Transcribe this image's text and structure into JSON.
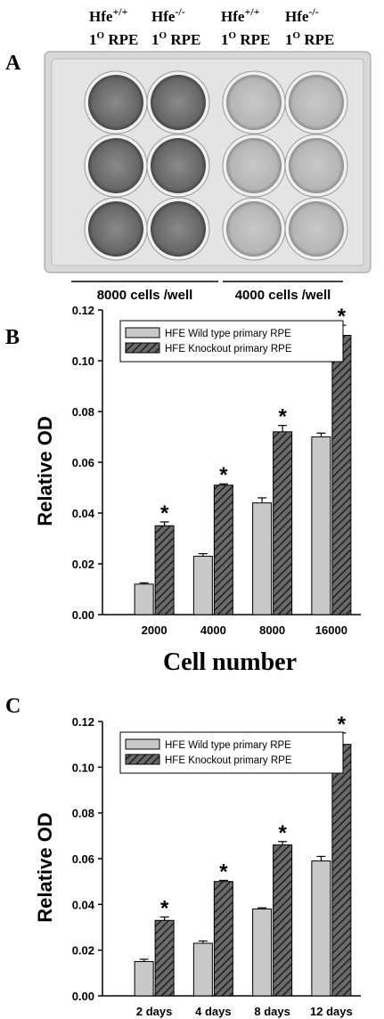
{
  "panel_a": {
    "label": "A",
    "column_labels": [
      {
        "name": "Hfe",
        "genotype": "+/+",
        "passage": "1",
        "passage_sup": "O",
        "cell": "RPE"
      },
      {
        "name": "Hfe",
        "genotype": "-/-",
        "passage": "1",
        "passage_sup": "O",
        "cell": "RPE"
      },
      {
        "name": "Hfe",
        "genotype": "+/+",
        "passage": "1",
        "passage_sup": "O",
        "cell": "RPE"
      },
      {
        "name": "Hfe",
        "genotype": "-/-",
        "passage": "1",
        "passage_sup": "O",
        "cell": "RPE"
      }
    ],
    "group_labels": [
      "8000 cells /well",
      "4000 cells /well"
    ]
  },
  "chart_data": [
    {
      "type": "bar",
      "panel_label": "B",
      "xlabel": "Cell number",
      "ylabel": "Relative OD",
      "categories": [
        "2000",
        "4000",
        "8000",
        "16000"
      ],
      "series": [
        {
          "name": "HFE Wild type primary RPE",
          "color": "#c8c8c8",
          "hatch": false,
          "values": [
            0.012,
            0.023,
            0.044,
            0.07
          ],
          "errors": [
            0.0005,
            0.001,
            0.002,
            0.0015
          ]
        },
        {
          "name": "HFE Knockout primary RPE",
          "color": "#6a6a6a",
          "hatch": true,
          "values": [
            0.035,
            0.051,
            0.072,
            0.11
          ],
          "errors": [
            0.0015,
            0.0005,
            0.0025,
            0.004
          ]
        }
      ],
      "significance": [
        "*",
        "*",
        "*",
        "*"
      ],
      "ylim": [
        0,
        0.12
      ],
      "yticks": [
        {
          "value": 0,
          "label": "0.00"
        },
        0.02,
        0.04,
        0.06,
        0.08,
        {
          "value": 0.1,
          "label": "0.10"
        },
        0.12
      ],
      "legend": "upper left"
    },
    {
      "type": "bar",
      "panel_label": "C",
      "ylabel": "Relative OD",
      "categories": [
        "2 days",
        "4 days",
        "8 days",
        "12 days"
      ],
      "series": [
        {
          "name": "HFE Wild type primary RPE",
          "color": "#c8c8c8",
          "hatch": false,
          "values": [
            0.015,
            0.023,
            0.038,
            0.059
          ],
          "errors": [
            0.001,
            0.001,
            0.0005,
            0.002
          ]
        },
        {
          "name": "HFE Knockout primary RPE",
          "color": "#6a6a6a",
          "hatch": true,
          "values": [
            0.033,
            0.05,
            0.066,
            0.11
          ],
          "errors": [
            0.0015,
            0.0005,
            0.0015,
            0.005
          ]
        }
      ],
      "significance": [
        "*",
        "*",
        "*",
        "*"
      ],
      "ylim": [
        0,
        0.12
      ],
      "yticks": [
        {
          "value": 0,
          "label": "0.00"
        },
        0.02,
        0.04,
        0.06,
        0.08,
        {
          "value": 0.1,
          "label": "0.10"
        },
        0.12
      ],
      "legend": "upper left"
    }
  ]
}
